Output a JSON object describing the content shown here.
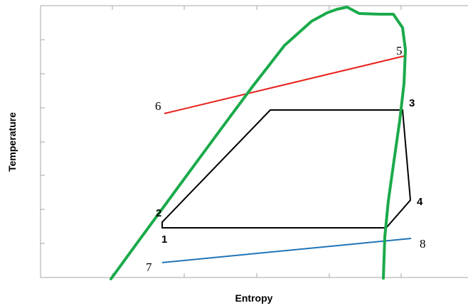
{
  "axes": {
    "x_title": "Entropy",
    "y_title": "Temperature"
  },
  "state_points": {
    "p1": "1",
    "p2": "2",
    "p3": "3",
    "p4": "4",
    "p5": "5",
    "p6": "6",
    "p7": "7",
    "p8": "8"
  },
  "colors": {
    "saturation_dome": "#1aaa4a",
    "cycle": "#000000",
    "hot_stream": "#e8201c",
    "cold_stream": "#1f74b8",
    "frame": "#a6a6a6"
  }
}
